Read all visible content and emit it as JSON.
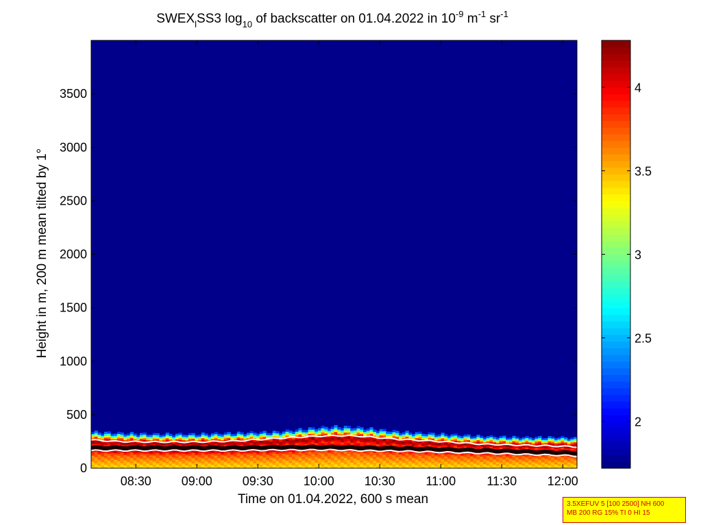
{
  "chart_data": {
    "type": "heatmap",
    "title": {
      "part1": "SWEX",
      "sub1": "l",
      "part2": "SS3 log",
      "sub2": "10",
      "part3": " of backscatter on 01.04.2022 in 10",
      "sup1": "-9",
      "part4": " m",
      "sup2": "-1",
      "part5": " sr",
      "sup3": "-1"
    },
    "xlabel": "Time on 01.04.2022, 600 s mean",
    "ylabel": "Height in m, 200 m mean tilted by 1°",
    "x_ticks": [
      "08:30",
      "09:00",
      "09:30",
      "10:00",
      "10:30",
      "11:00",
      "11:30",
      "12:00"
    ],
    "x_tick_minutes": [
      510,
      540,
      570,
      600,
      630,
      660,
      690,
      720
    ],
    "x_range_minutes": [
      488,
      727
    ],
    "y_ticks": [
      0,
      500,
      1000,
      1500,
      2000,
      2500,
      3000,
      3500
    ],
    "ylim": [
      0,
      4000
    ],
    "colorbar": {
      "ticks": [
        2,
        2.5,
        3,
        3.5,
        4
      ],
      "labels": [
        "2",
        "2.5",
        "3",
        "3.5",
        "4"
      ],
      "range": [
        1.72,
        4.28
      ],
      "colormap": "jet"
    },
    "background_value": 1.75,
    "layer": {
      "time_minutes": [
        488,
        500,
        520,
        540,
        560,
        580,
        600,
        610,
        620,
        640,
        660,
        680,
        700,
        720,
        727
      ],
      "boundary_top_m": [
        340,
        330,
        320,
        320,
        330,
        340,
        380,
        390,
        380,
        340,
        320,
        300,
        290,
        290,
        280
      ],
      "white_line_upper_m": [
        265,
        250,
        245,
        245,
        255,
        280,
        300,
        305,
        300,
        270,
        250,
        225,
        215,
        205,
        200
      ],
      "white_line_lower_m": [
        165,
        165,
        165,
        165,
        165,
        170,
        170,
        170,
        165,
        160,
        150,
        140,
        130,
        120,
        115
      ]
    },
    "info_box": {
      "line1": "3.5XEFUV 5 [100 2500] NH 600",
      "line2": "MB 200 RG 15% TI 0 HI 15"
    }
  }
}
